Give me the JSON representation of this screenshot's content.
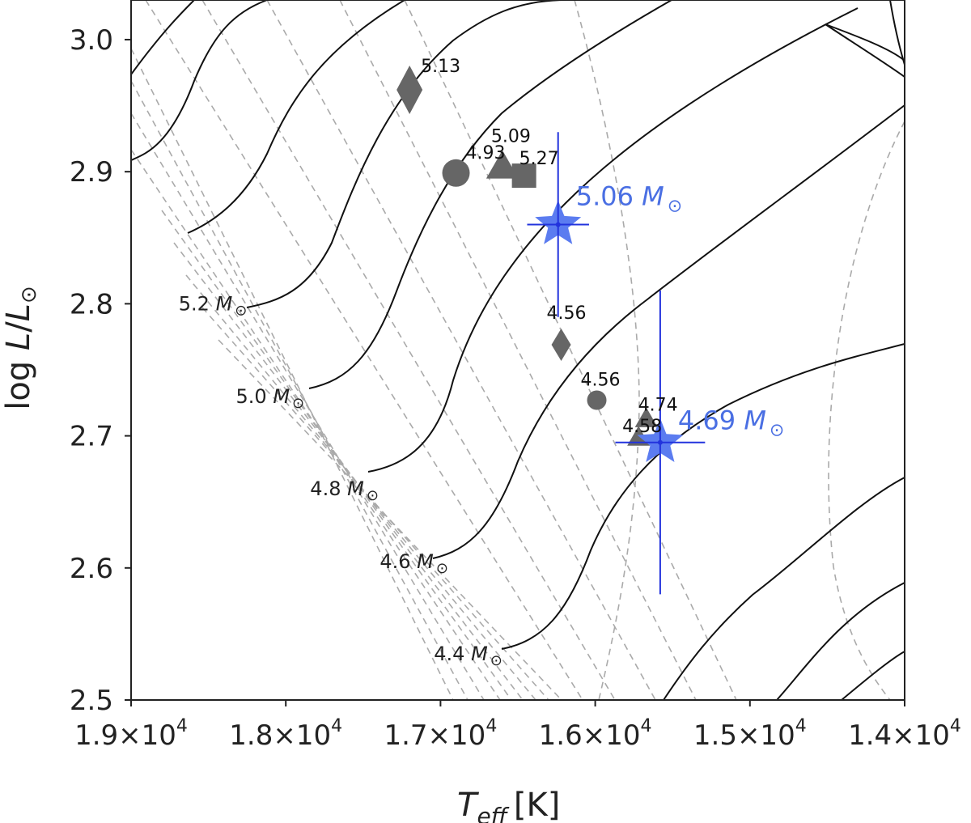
{
  "chart_data": {
    "type": "scatter",
    "xlabel_main": "T",
    "xlabel_sub": "eff",
    "xlabel_unit": "[K]",
    "ylabel_pre": "log ",
    "ylabel_L": "L",
    "ylabel_slash": "/",
    "ylabel_Lsun": "L",
    "ylabel_sun": "⊙",
    "xlim": [
      19000,
      14000
    ],
    "ylim": [
      2.5,
      3.03
    ],
    "x_ticks": [
      {
        "mant": "1.9",
        "times": "×10",
        "exp": "4",
        "value": 19000
      },
      {
        "mant": "1.8",
        "times": "×10",
        "exp": "4",
        "value": 18000
      },
      {
        "mant": "1.7",
        "times": "×10",
        "exp": "4",
        "value": 17000
      },
      {
        "mant": "1.6",
        "times": "×10",
        "exp": "4",
        "value": 16000
      },
      {
        "mant": "1.5",
        "times": "×10",
        "exp": "4",
        "value": 15000
      },
      {
        "mant": "1.4",
        "times": "×10",
        "exp": "4",
        "value": 14000
      }
    ],
    "y_ticks": [
      {
        "label": "2.5",
        "value": 2.5
      },
      {
        "label": "2.6",
        "value": 2.6
      },
      {
        "label": "2.7",
        "value": 2.7
      },
      {
        "label": "2.8",
        "value": 2.8
      },
      {
        "label": "2.9",
        "value": 2.9
      },
      {
        "label": "3.0",
        "value": 3.0
      }
    ],
    "mass_labels": [
      {
        "text": "5.2 M",
        "sun": "⊙",
        "T": 18250,
        "L": 2.795
      },
      {
        "text": "5.0 M",
        "sun": "⊙",
        "T": 17880,
        "L": 2.725
      },
      {
        "text": "4.8 M",
        "sun": "⊙",
        "T": 17400,
        "L": 2.655
      },
      {
        "text": "4.6 M",
        "sun": "⊙",
        "T": 16950,
        "L": 2.6
      },
      {
        "text": "4.4 M",
        "sun": "⊙",
        "T": 16600,
        "L": 2.53
      }
    ],
    "points": [
      {
        "shape": "diamond",
        "T": 17200,
        "L": 2.962,
        "label": "5.13"
      },
      {
        "shape": "circle",
        "T": 16900,
        "L": 2.899,
        "label": "4.93"
      },
      {
        "shape": "triangle",
        "T": 16600,
        "L": 2.904,
        "label": "5.09"
      },
      {
        "shape": "square",
        "T": 16460,
        "L": 2.897,
        "label": "5.27"
      },
      {
        "shape": "diamond",
        "T": 16220,
        "L": 2.769,
        "label": "4.56"
      },
      {
        "shape": "circle",
        "T": 15990,
        "L": 2.727,
        "label": "4.56"
      },
      {
        "shape": "triangle",
        "T": 15670,
        "L": 2.713,
        "label": "4.74"
      },
      {
        "shape": "triangle",
        "T": 15720,
        "L": 2.699,
        "label": "4.58"
      }
    ],
    "stars": [
      {
        "T": 16240,
        "L": 2.86,
        "Terr": 200,
        "Lerr": 0.07,
        "label": "5.06 M",
        "sun": "⊙"
      },
      {
        "T": 15580,
        "L": 2.695,
        "Terr": 290,
        "Lerr": 0.115,
        "label": "4.69 M",
        "sun": "⊙"
      }
    ],
    "colors": {
      "axis": "#222222",
      "track": "#111111",
      "iso": "#aaaaaa",
      "marker": "#666666",
      "star": "#5b7cf0",
      "errbar": "#2233dd",
      "star_label": "#4a6fe3"
    }
  }
}
